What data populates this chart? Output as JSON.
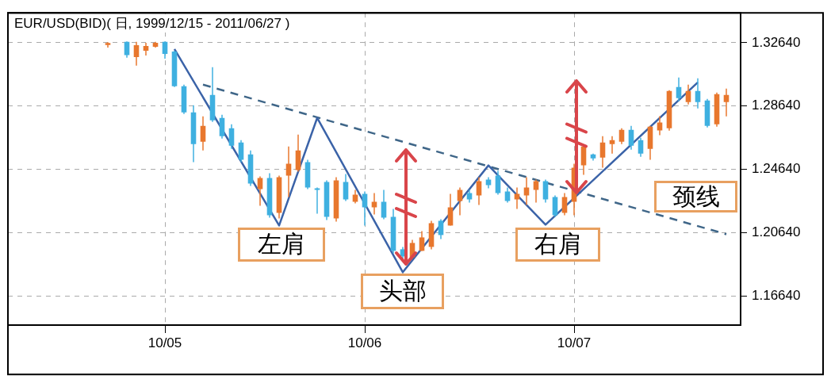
{
  "chart_data": {
    "type": "candlestick",
    "title": "EUR/USD(BID)( 日, 1999/12/15 - 2011/06/27 )",
    "categories": [
      null,
      null,
      null,
      null,
      null,
      null,
      null,
      null,
      null,
      null,
      null,
      null,
      null,
      null,
      null,
      null,
      "10/05",
      null,
      null,
      null,
      null,
      null,
      null,
      null,
      null,
      null,
      null,
      null,
      null,
      null,
      null,
      null,
      null,
      null,
      null,
      null,
      null,
      "10/06",
      null,
      null,
      null,
      null,
      null,
      null,
      null,
      null,
      null,
      null,
      null,
      null,
      null,
      null,
      null,
      null,
      null,
      null,
      null,
      null,
      null,
      "10/07",
      null,
      null,
      null,
      null,
      null,
      null,
      null,
      null,
      null,
      null,
      null,
      null,
      null,
      null,
      null,
      null,
      null
    ],
    "ohlc": [
      null,
      null,
      null,
      null,
      null,
      null,
      null,
      null,
      null,
      null,
      [
        1.325,
        1.3268,
        1.3234,
        1.3262
      ],
      null,
      [
        1.327,
        1.3272,
        1.317,
        1.3186
      ],
      [
        1.3174,
        1.327,
        1.3119,
        1.3249
      ],
      [
        1.3214,
        1.3264,
        1.3184,
        1.3244
      ],
      [
        1.3239,
        1.327,
        1.3234,
        1.3264
      ],
      [
        1.327,
        1.3272,
        1.3164,
        1.3194
      ],
      [
        1.3209,
        1.3214,
        1.2984,
        1.2989
      ],
      [
        1.2989,
        1.2999,
        1.2814,
        1.2824
      ],
      [
        1.2824,
        1.2869,
        1.2509,
        1.2624
      ],
      [
        1.2639,
        1.2799,
        1.2584,
        1.2739
      ],
      [
        1.2934,
        1.3109,
        1.2764,
        1.2774
      ],
      [
        1.2789,
        1.2809,
        1.2659,
        1.2674
      ],
      [
        1.2724,
        1.2749,
        1.2594,
        1.2614
      ],
      [
        1.2634,
        1.2649,
        1.2509,
        1.2524
      ],
      [
        1.2559,
        1.2584,
        1.2359,
        1.2374
      ],
      [
        1.2339,
        1.2419,
        1.2234,
        1.2409
      ],
      [
        1.2409,
        1.2439,
        1.2159,
        1.2174
      ],
      [
        1.2189,
        1.2424,
        1.2154,
        1.2414
      ],
      [
        1.2424,
        1.2609,
        1.2289,
        1.2499
      ],
      [
        1.2459,
        1.2684,
        1.2449,
        1.2584
      ],
      [
        1.2509,
        1.2524,
        1.2339,
        1.2349
      ],
      [
        1.2344,
        1.2349,
        1.2184,
        1.2334
      ],
      [
        1.2384,
        1.2394,
        1.2144,
        1.2164
      ],
      [
        1.2154,
        1.2414,
        1.2134,
        1.2394
      ],
      [
        1.2384,
        1.2434,
        1.2264,
        1.2274
      ],
      [
        1.2259,
        1.2334,
        1.2249,
        1.2304
      ],
      [
        1.2309,
        1.2324,
        1.2109,
        1.2224
      ],
      [
        1.2224,
        1.2314,
        1.2179,
        1.2259
      ],
      [
        1.2259,
        1.2334,
        1.2149,
        1.2159
      ],
      [
        1.2164,
        1.2214,
        1.1934,
        1.1949
      ],
      [
        1.1959,
        1.1974,
        1.1899,
        1.1914
      ],
      [
        1.1909,
        1.2019,
        1.1899,
        1.1999
      ],
      [
        1.1949,
        1.2074,
        1.1949,
        1.2034
      ],
      [
        1.1974,
        1.2139,
        1.1959,
        1.2124
      ],
      [
        1.2139,
        1.2149,
        1.2024,
        1.2049
      ],
      [
        1.2109,
        1.2309,
        1.2109,
        1.2224
      ],
      [
        1.2264,
        1.2349,
        1.2174,
        1.2334
      ],
      [
        1.2314,
        1.2334,
        1.2254,
        1.2274
      ],
      [
        1.2299,
        1.2414,
        1.2239,
        1.2389
      ],
      [
        1.2399,
        1.2414,
        1.2344,
        1.2364
      ],
      [
        1.2424,
        1.2454,
        1.2304,
        1.2314
      ],
      [
        1.2324,
        1.2349,
        1.2254,
        1.2264
      ],
      [
        1.2274,
        1.2349,
        1.2214,
        1.2309
      ],
      [
        1.2299,
        1.2414,
        1.2239,
        1.2349
      ],
      [
        1.2334,
        1.2399,
        1.2254,
        1.2389
      ],
      [
        1.2389,
        1.2399,
        1.2254,
        1.2274
      ],
      [
        1.2289,
        1.2299,
        1.2164,
        1.2174
      ],
      [
        1.2189,
        1.2314,
        1.2174,
        1.2289
      ],
      [
        1.2259,
        1.2499,
        1.2174,
        1.2474
      ],
      [
        1.2489,
        1.2619,
        1.2429,
        1.2609
      ],
      [
        1.2559,
        1.2564,
        1.2519,
        1.2534
      ],
      [
        1.2539,
        1.2674,
        1.2474,
        1.2634
      ],
      [
        1.2624,
        1.2674,
        1.2564,
        1.2649
      ],
      [
        1.2639,
        1.2724,
        1.2624,
        1.2714
      ],
      [
        1.2714,
        1.2739,
        1.2589,
        1.2614
      ],
      [
        1.2649,
        1.2664,
        1.2544,
        1.2564
      ],
      [
        1.2594,
        1.2739,
        1.2524,
        1.2734
      ],
      [
        1.271,
        1.28,
        1.268,
        1.276
      ],
      [
        1.2724,
        1.2964,
        1.2709,
        1.2959
      ],
      [
        1.2984,
        1.3044,
        1.2894,
        1.2914
      ],
      [
        1.2889,
        1.2999,
        1.2874,
        1.2959
      ],
      [
        1.2959,
        1.3039,
        1.2849,
        1.2889
      ],
      [
        1.2899,
        1.2909,
        1.2729,
        1.2739
      ],
      [
        1.2749,
        1.2949,
        1.2734,
        1.2939
      ],
      [
        1.2889,
        1.2974,
        1.2799,
        1.2934
      ],
      null
    ],
    "colors": [
      null,
      null,
      null,
      null,
      null,
      null,
      null,
      null,
      null,
      null,
      "#e8772e",
      null,
      "#3fb0e0",
      "#e8772e",
      "#e8772e",
      "#e8772e",
      "#3fb0e0",
      "#3fb0e0",
      "#3fb0e0",
      "#3fb0e0",
      "#e8772e",
      "#3fb0e0",
      "#3fb0e0",
      "#3fb0e0",
      "#3fb0e0",
      "#3fb0e0",
      "#e8772e",
      "#3fb0e0",
      "#e8772e",
      "#e8772e",
      "#e8772e",
      "#3fb0e0",
      "#3fb0e0",
      "#3fb0e0",
      "#e8772e",
      "#3fb0e0",
      "#e8772e",
      "#3fb0e0",
      "#e8772e",
      "#3fb0e0",
      "#3fb0e0",
      "#3fb0e0",
      "#e8772e",
      "#e8772e",
      "#e8772e",
      "#3fb0e0",
      "#e8772e",
      "#e8772e",
      "#3fb0e0",
      "#e8772e",
      "#3fb0e0",
      "#3fb0e0",
      "#3fb0e0",
      "#e8772e",
      "#e8772e",
      "#e8772e",
      "#3fb0e0",
      "#3fb0e0",
      "#e8772e",
      "#e8772e",
      "#e8772e",
      "#3fb0e0",
      "#e8772e",
      "#e8772e",
      "#e8772e",
      "#3fb0e0",
      "#3fb0e0",
      "#e8772e",
      "#e8772e",
      "#e8772e",
      "#3fb0e0",
      "#e8772e",
      "#3fb0e0",
      "#3fb0e0",
      "#e8772e",
      "#e8772e",
      null
    ],
    "series": [
      {
        "type": "line",
        "color": "#3b63a8",
        "line_style": "solid",
        "values": [
          null,
          null,
          null,
          null,
          null,
          null,
          null,
          null,
          null,
          null,
          null,
          null,
          null,
          null,
          null,
          null,
          null,
          1.3224,
          null,
          null,
          null,
          null,
          null,
          null,
          null,
          null,
          null,
          null,
          1.2109,
          null,
          null,
          null,
          1.2789,
          null,
          null,
          null,
          null,
          null,
          null,
          null,
          null,
          1.1814,
          null,
          null,
          null,
          null,
          null,
          null,
          null,
          null,
          1.2489,
          null,
          null,
          null,
          null,
          null,
          1.2114,
          null,
          null,
          null,
          null,
          null,
          null,
          null,
          null,
          null,
          null,
          null,
          null,
          null,
          null,
          null,
          1.3014,
          null,
          null,
          null,
          null
        ]
      },
      {
        "type": "line",
        "color": "#3f6688",
        "line_style": "dashed",
        "values": [
          null,
          null,
          null,
          null,
          null,
          null,
          null,
          null,
          null,
          null,
          null,
          null,
          null,
          null,
          null,
          null,
          null,
          null,
          null,
          null,
          1.2999,
          null,
          null,
          null,
          null,
          null,
          null,
          null,
          null,
          null,
          null,
          null,
          null,
          null,
          null,
          null,
          null,
          null,
          null,
          null,
          null,
          null,
          null,
          null,
          null,
          null,
          null,
          null,
          null,
          null,
          null,
          null,
          null,
          null,
          null,
          null,
          null,
          null,
          null,
          null,
          null,
          null,
          null,
          null,
          null,
          null,
          null,
          null,
          null,
          null,
          null,
          null,
          null,
          null,
          null,
          1.2054,
          null
        ]
      }
    ],
    "ylim": [
      1.148,
      1.3453
    ],
    "yticks": [
      {
        "value": 1.1664,
        "label": "1.16640"
      },
      {
        "value": 1.2064,
        "label": "1.20640"
      },
      {
        "value": 1.2464,
        "label": "1.24640"
      },
      {
        "value": 1.2864,
        "label": "1.28640"
      },
      {
        "value": 1.3264,
        "label": "1.32640"
      }
    ],
    "grid": true,
    "marker": "none",
    "annotations": [
      "左肩",
      "头部",
      "右肩",
      "颈线"
    ]
  }
}
